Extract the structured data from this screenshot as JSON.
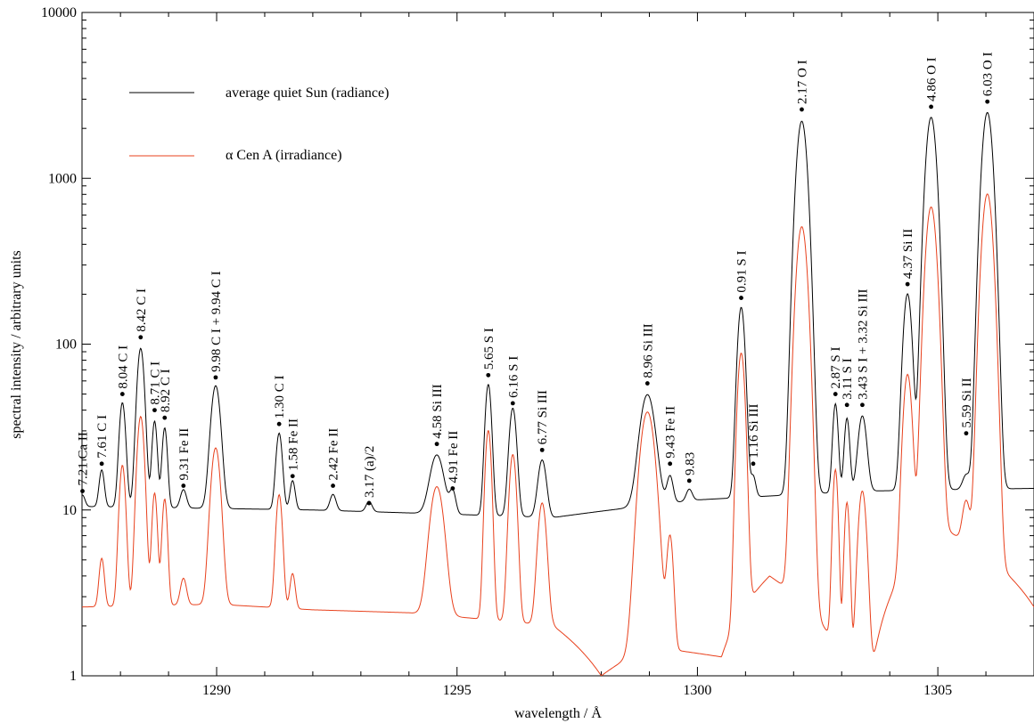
{
  "colors": {
    "quiet_sun": "#000000",
    "alpha_cen": "#e8401c",
    "axis": "#000000",
    "background": "#ffffff"
  },
  "chart_data": {
    "type": "line",
    "xlabel": "wavelength / Å",
    "ylabel": "spectral intensity / arbitrary units",
    "xlim": [
      1287.2,
      1307.0
    ],
    "ylim": [
      1,
      10000
    ],
    "y_scale": "log",
    "x_ticks": [
      1290,
      1295,
      1300,
      1305
    ],
    "x_tick_labels": [
      "1290",
      "1295",
      "1300",
      "1305"
    ],
    "y_ticks": [
      1,
      10,
      100,
      1000,
      10000
    ],
    "y_tick_labels": [
      "1",
      "10",
      "100",
      "1000",
      "10000"
    ],
    "legend": {
      "placement": "top-left"
    },
    "series": [
      {
        "name": "average quiet Sun (radiance)",
        "color": "#000000",
        "baseline": [
          [
            1287.2,
            10.5
          ],
          [
            1292.0,
            10.0
          ],
          [
            1297.0,
            9.0
          ],
          [
            1300.0,
            11.5
          ],
          [
            1303.5,
            13.0
          ],
          [
            1307.0,
            13.5
          ]
        ],
        "lines": [
          [
            1287.21,
            1.8,
            0.05
          ],
          [
            1287.61,
            7.0,
            0.05
          ],
          [
            1288.04,
            34.0,
            0.06
          ],
          [
            1288.42,
            84.0,
            0.07
          ],
          [
            1288.71,
            24.0,
            0.05
          ],
          [
            1288.92,
            21.0,
            0.05
          ],
          [
            1289.31,
            3.0,
            0.06
          ],
          [
            1289.98,
            46.0,
            0.09
          ],
          [
            1291.3,
            19.0,
            0.06
          ],
          [
            1291.58,
            5.0,
            0.05
          ],
          [
            1292.42,
            2.5,
            0.06
          ],
          [
            1293.17,
            1.5,
            0.06
          ],
          [
            1294.58,
            12.0,
            0.13
          ],
          [
            1294.91,
            3.5,
            0.06
          ],
          [
            1295.65,
            48.0,
            0.06
          ],
          [
            1296.16,
            32.0,
            0.07
          ],
          [
            1296.77,
            11.0,
            0.08
          ],
          [
            1298.96,
            39.0,
            0.14
          ],
          [
            1299.43,
            5.0,
            0.06
          ],
          [
            1299.83,
            2.0,
            0.06
          ],
          [
            1300.91,
            155.0,
            0.07
          ],
          [
            1301.16,
            4.0,
            0.05
          ],
          [
            1302.17,
            2200.0,
            0.1
          ],
          [
            1302.87,
            31.0,
            0.05
          ],
          [
            1303.11,
            23.0,
            0.05
          ],
          [
            1303.43,
            24.0,
            0.08
          ],
          [
            1304.37,
            188.0,
            0.08
          ],
          [
            1304.86,
            2320.0,
            0.1
          ],
          [
            1305.59,
            3.0,
            0.07
          ],
          [
            1306.03,
            2480.0,
            0.1
          ]
        ]
      },
      {
        "name": "α Cen A (irradiance)",
        "color": "#e8401c",
        "baseline": [
          [
            1287.2,
            2.6
          ],
          [
            1290.0,
            2.7
          ],
          [
            1292.0,
            2.5
          ],
          [
            1294.0,
            2.4
          ],
          [
            1297.0,
            2.0
          ],
          [
            1298.0,
            1.0
          ],
          [
            1299.0,
            1.5
          ],
          [
            1300.5,
            1.3
          ],
          [
            1301.5,
            4.0
          ],
          [
            1303.5,
            0.4
          ],
          [
            1305.0,
            8.0
          ],
          [
            1307.0,
            2.6
          ]
        ],
        "lines": [
          [
            1287.61,
            2.5,
            0.05
          ],
          [
            1288.04,
            16.0,
            0.06
          ],
          [
            1288.42,
            34.0,
            0.07
          ],
          [
            1288.71,
            10.0,
            0.05
          ],
          [
            1288.92,
            9.0,
            0.05
          ],
          [
            1289.31,
            1.2,
            0.06
          ],
          [
            1289.98,
            21.0,
            0.09
          ],
          [
            1291.3,
            9.8,
            0.06
          ],
          [
            1291.58,
            1.6,
            0.05
          ],
          [
            1294.58,
            11.5,
            0.13
          ],
          [
            1295.65,
            28.0,
            0.06
          ],
          [
            1296.16,
            19.5,
            0.07
          ],
          [
            1296.77,
            9.0,
            0.08
          ],
          [
            1298.96,
            37.5,
            0.14
          ],
          [
            1299.43,
            5.5,
            0.06
          ],
          [
            1300.91,
            86.0,
            0.07
          ],
          [
            1302.17,
            508.0,
            0.1
          ],
          [
            1302.87,
            16.0,
            0.05
          ],
          [
            1303.11,
            10.0,
            0.05
          ],
          [
            1303.43,
            12.5,
            0.08
          ],
          [
            1304.37,
            61.0,
            0.08
          ],
          [
            1304.86,
            665.0,
            0.1
          ],
          [
            1305.59,
            5.0,
            0.07
          ],
          [
            1306.03,
            800.0,
            0.1
          ]
        ]
      }
    ],
    "annotations": [
      {
        "wl": 1287.21,
        "y": 13,
        "text": "7.21  Ca II"
      },
      {
        "wl": 1287.61,
        "y": 19,
        "text": "7.61  C I"
      },
      {
        "wl": 1288.04,
        "y": 50,
        "text": "8.04   C I"
      },
      {
        "wl": 1288.42,
        "y": 110,
        "text": "8.42   C I"
      },
      {
        "wl": 1288.71,
        "y": 40,
        "text": "8.71  C I"
      },
      {
        "wl": 1288.92,
        "y": 36,
        "text": "8.92  C I"
      },
      {
        "wl": 1289.31,
        "y": 14,
        "text": "9.31   Fe II"
      },
      {
        "wl": 1289.98,
        "y": 63,
        "text": "9.98   C I + 9.94 C I"
      },
      {
        "wl": 1291.3,
        "y": 33,
        "text": "1.30   C I"
      },
      {
        "wl": 1291.58,
        "y": 16,
        "text": "1.58   Fe II"
      },
      {
        "wl": 1292.42,
        "y": 14,
        "text": "2.42  Fe II"
      },
      {
        "wl": 1293.17,
        "y": 11,
        "text": "3.17    (a)/2"
      },
      {
        "wl": 1294.58,
        "y": 25,
        "text": "4.58   Si III"
      },
      {
        "wl": 1294.91,
        "y": 13.5,
        "text": "4.91   Fe II"
      },
      {
        "wl": 1295.65,
        "y": 65,
        "text": "5.65   S I"
      },
      {
        "wl": 1296.16,
        "y": 44,
        "text": "6.16  S I"
      },
      {
        "wl": 1296.77,
        "y": 23,
        "text": "6.77  Si III"
      },
      {
        "wl": 1298.96,
        "y": 58,
        "text": "8.96   Si III"
      },
      {
        "wl": 1299.43,
        "y": 19,
        "text": "9.43   Fe II"
      },
      {
        "wl": 1299.83,
        "y": 15,
        "text": "9.83"
      },
      {
        "wl": 1300.91,
        "y": 190,
        "text": "0.91   S I"
      },
      {
        "wl": 1301.16,
        "y": 19,
        "text": "1.16  Si III"
      },
      {
        "wl": 1302.17,
        "y": 2600,
        "text": "2.17   O I"
      },
      {
        "wl": 1302.87,
        "y": 50,
        "text": "2.87   S I"
      },
      {
        "wl": 1303.11,
        "y": 43,
        "text": "3.11   S I"
      },
      {
        "wl": 1303.43,
        "y": 43,
        "text": "3.43   S I + 3.32 Si III"
      },
      {
        "wl": 1304.37,
        "y": 230,
        "text": "4.37   Si II"
      },
      {
        "wl": 1304.86,
        "y": 2700,
        "text": "4.86   O I"
      },
      {
        "wl": 1305.59,
        "y": 29,
        "text": "5.59  Si II"
      },
      {
        "wl": 1306.03,
        "y": 2900,
        "text": "6.03   O I"
      }
    ]
  }
}
